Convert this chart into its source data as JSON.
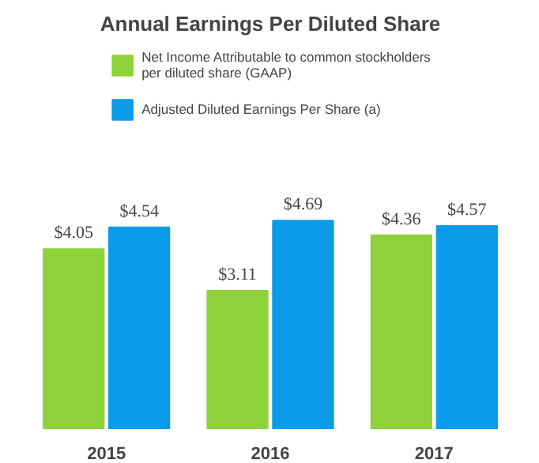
{
  "chart_data": {
    "type": "bar",
    "title": "Annual Earnings Per Diluted Share",
    "categories": [
      "2015",
      "2016",
      "2017"
    ],
    "series": [
      {
        "name": "Net Income Attributable to common stockholders per diluted share (GAAP)",
        "color": "#8fd13b",
        "values": [
          4.05,
          3.11,
          4.36
        ],
        "value_labels": [
          "$4.05",
          "$3.11",
          "$4.36"
        ]
      },
      {
        "name": "Adjusted Diluted Earnings Per Share (a)",
        "color": "#0b9be8",
        "values": [
          4.54,
          4.69,
          4.57
        ],
        "value_labels": [
          "$4.54",
          "$4.69",
          "$4.57"
        ]
      }
    ],
    "legend": "top"
  }
}
